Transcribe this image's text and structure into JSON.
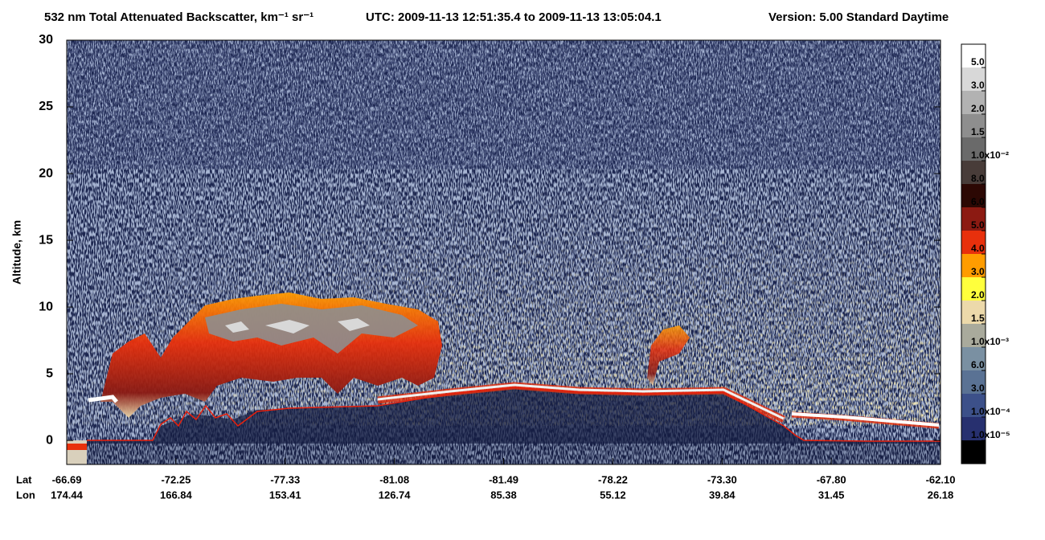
{
  "chart_data": {
    "type": "curtain",
    "title": "532 nm Total Attenuated Backscatter, km⁻¹ sr⁻¹",
    "time_range": "UTC:  2009-11-13 12:51:35.4  to  2009-11-13 13:05:04.1",
    "version": "Version: 5.00  Standard  Daytime",
    "ylabel": "Altitude, km",
    "ylim": [
      -1.8,
      30
    ],
    "yticks": [
      0,
      5,
      10,
      15,
      20,
      25,
      30
    ],
    "lat_title": "Lat",
    "lon_title": "Lon",
    "lat": [
      "-66.69",
      "-72.25",
      "-77.33",
      "-81.08",
      "-81.49",
      "-78.22",
      "-73.30",
      "-67.80",
      "-62.10"
    ],
    "lon": [
      "174.44",
      "166.84",
      "153.41",
      "126.74",
      "85.38",
      "55.12",
      "39.84",
      "31.45",
      "26.18"
    ],
    "colorbar": {
      "colors": [
        "#ffffff",
        "#d8d8d8",
        "#b2b2b2",
        "#8e8e8e",
        "#6a6a6a",
        "#483c39",
        "#2c0804",
        "#8c1a12",
        "#e8300c",
        "#ff9c00",
        "#ffff3c",
        "#ecd9aa",
        "#a9aa9c",
        "#7a90a2",
        "#5a7294",
        "#3c5089",
        "#27306f",
        "#000000"
      ],
      "labels": [
        "5.0",
        "3.0",
        "2.0",
        "1.5",
        "1.0x10⁻²",
        "8.0",
        "6.0",
        "5.0",
        "4.0",
        "3.0",
        "2.0",
        "1.5",
        "1.0x10⁻³",
        "6.0",
        "3.0",
        "1.0x10⁻⁴",
        "1.0x10⁻⁵"
      ]
    }
  }
}
